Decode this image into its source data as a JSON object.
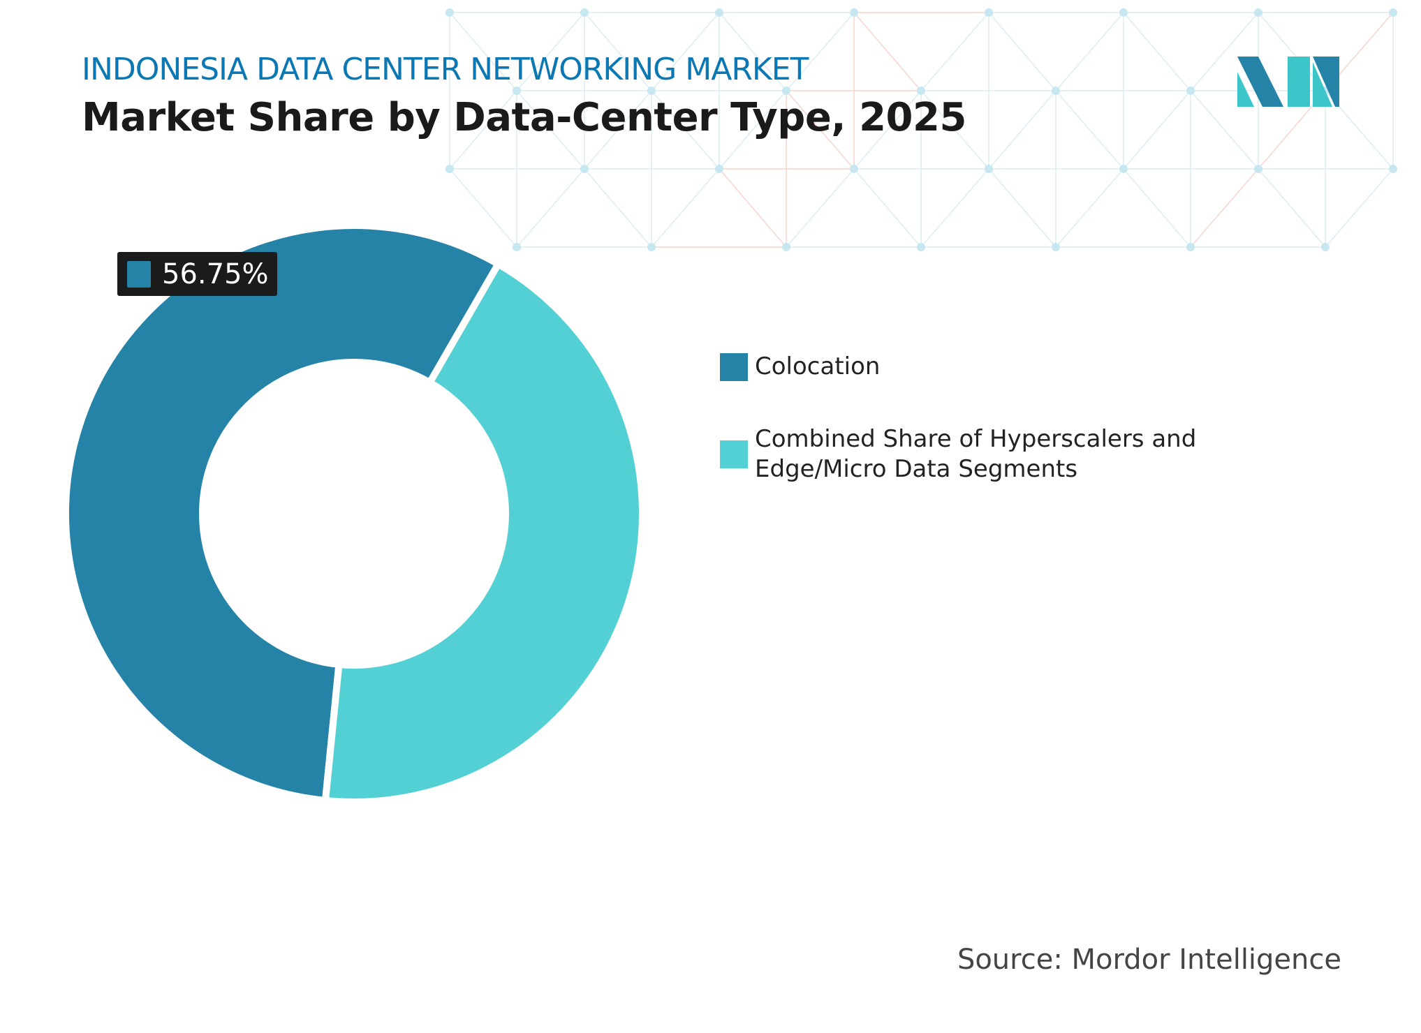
{
  "header": {
    "kicker": "INDONESIA DATA CENTER NETWORKING MARKET",
    "title": "Market Share by Data-Center Type, 2025"
  },
  "chart_data": {
    "type": "pie",
    "variant": "donut",
    "title": "Market Share by Data-Center Type, 2025",
    "series": [
      {
        "name": "Colocation",
        "value": 56.75,
        "color": "#2583a8"
      },
      {
        "name": "Combined Share of Hyperscalers and Edge/Micro Data Segments",
        "value": 43.25,
        "color": "#52d0d3"
      }
    ],
    "data_labels": [
      {
        "series": "Colocation",
        "text": "56.75%"
      }
    ],
    "legend_position": "right"
  },
  "legend": {
    "items": [
      {
        "label": "Colocation",
        "color": "#2583a8"
      },
      {
        "label": "Combined Share of Hyperscalers and Edge/Micro Data Segments",
        "color": "#52d0d3"
      }
    ]
  },
  "label": {
    "value": "56.75%"
  },
  "footer": {
    "source": "Source: Mordor Intelligence"
  },
  "logo": {
    "text": "Mordor Intelligence"
  }
}
